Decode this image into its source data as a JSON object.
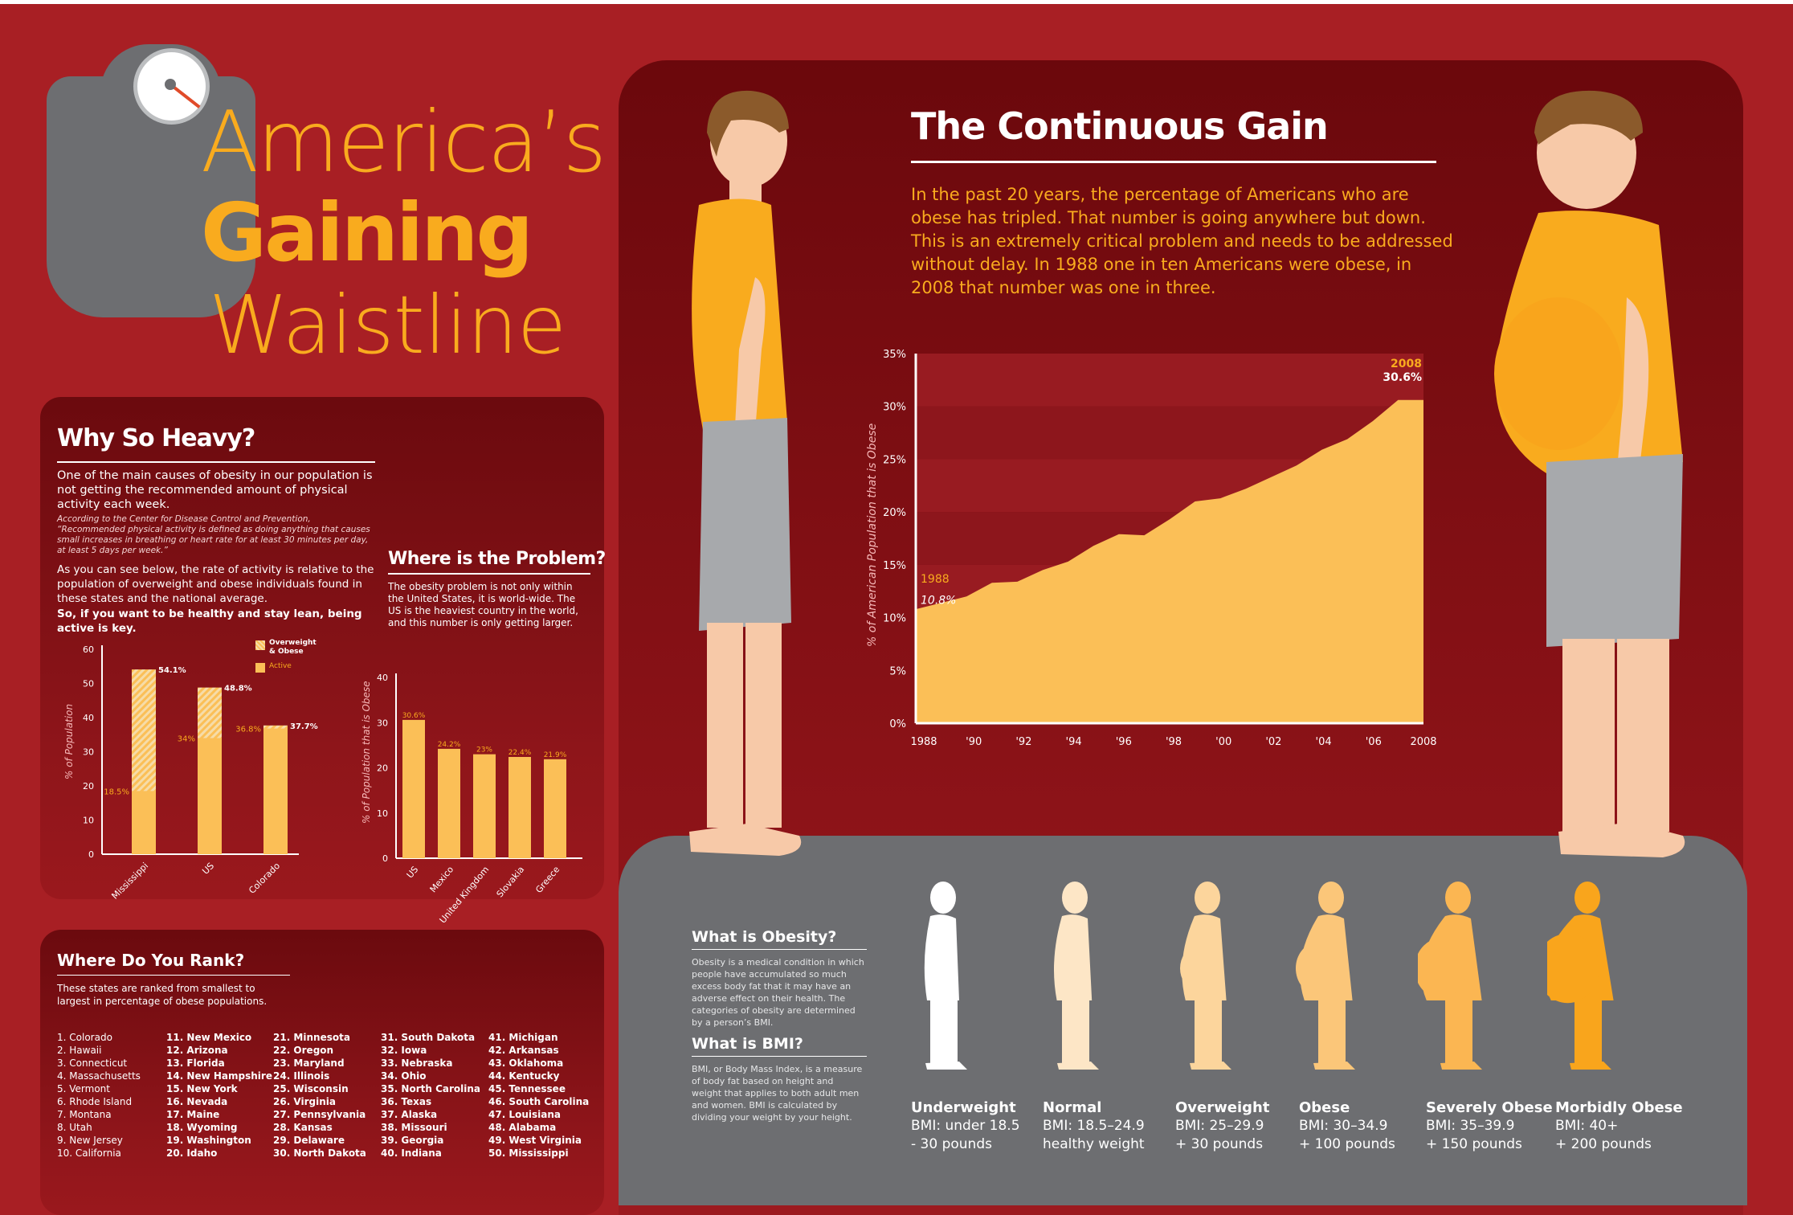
{
  "title": {
    "line1": "America’s",
    "line2": "Gaining",
    "line3": "Waistline"
  },
  "why": {
    "heading": "Why So Heavy?",
    "intro": "One of the main causes of obesity in our population is not getting the recommended amount of physical activity each week.",
    "note": "According to the Center for Disease Control and Prevention, “Recommended physical activity is defined as doing anything that causes small increases in breathing or heart rate for at least 30 minutes per day, at least 5 days per week.”",
    "para": "As you can see below, the rate of activity is relative to the population of overweight and obese individuals found in these states and the national average.",
    "para_bold": "So, if you want to be healthy and stay lean, being active is key."
  },
  "problem": {
    "heading": "Where is the Problem?",
    "text": "The obesity problem is not only within the United States, it is world-wide. The US is  the heaviest country in the world, and this number is only getting larger."
  },
  "rank": {
    "heading": "Where Do You Rank?",
    "text": "These states are ranked from smallest to largest in percentage of obese populations.",
    "columns": [
      [
        "1. Colorado",
        "2. Hawaii",
        "3. Connecticut",
        "4. Massachusetts",
        "5. Vermont",
        "6. Rhode Island",
        "7. Montana",
        "8. Utah",
        "9. New Jersey",
        "10. California"
      ],
      [
        "11. New Mexico",
        "12. Arizona",
        "13. Florida",
        "14. New Hampshire",
        "15. New York",
        "16. Nevada",
        "17. Maine",
        "18. Wyoming",
        "19. Washington",
        "20. Idaho"
      ],
      [
        "21. Minnesota",
        "22. Oregon",
        "23. Maryland",
        "24. Illinois",
        "25. Wisconsin",
        "26. Virginia",
        "27. Pennsylvania",
        "28. Kansas",
        "29. Delaware",
        "30. North Dakota"
      ],
      [
        "31. South Dakota",
        "32. Iowa",
        "33. Nebraska",
        "34. Ohio",
        "35. North Carolina",
        "36. Texas",
        "37. Alaska",
        "38. Missouri",
        "39. Georgia",
        "40. Indiana"
      ],
      [
        "41. Michigan",
        "42. Arkansas",
        "43. Oklahoma",
        "44. Kentucky",
        "45. Tennessee",
        "46. South Carolina",
        "47. Louisiana",
        "48. Alabama",
        "49. West Virginia",
        "50. Mississippi"
      ]
    ]
  },
  "main": {
    "heading": "The Continuous Gain",
    "text": "In the past 20 years, the percentage of Americans who are obese has tripled. That number is going anywhere but down. This is an extremely critical problem and needs to be addressed without delay. In 1988 one in ten Americans were obese, in 2008 that number was one in three."
  },
  "obesity": {
    "heading": "What is Obesity?",
    "text": "Obesity is a medical condition in which people have accumulated so much excess body fat that it may have an adverse effect on their health. The categories of obesity are determined by a person’s BMI.",
    "bmi_heading": "What is BMI?",
    "bmi_text": "BMI, or Body Mass Index, is a measure of body fat based on height and weight that applies to both adult men and women. BMI is calculated by dividing your weight by your height."
  },
  "bmi_categories": [
    {
      "name": "Underweight",
      "range": "BMI: under 18.5",
      "note": "- 30 pounds",
      "color": "#ffffff"
    },
    {
      "name": "Normal",
      "range": "BMI: 18.5–24.9",
      "note": "healthy weight",
      "color": "#fde6c6"
    },
    {
      "name": "Overweight",
      "range": "BMI: 25–29.9",
      "note": "+ 30 pounds",
      "color": "#fcd59c"
    },
    {
      "name": "Obese",
      "range": "BMI: 30–34.9",
      "note": "+ 100 pounds",
      "color": "#fbc679"
    },
    {
      "name": "Severely Obese",
      "range": "BMI: 35–39.9",
      "note": "+ 150 pounds",
      "color": "#fbb652"
    },
    {
      "name": "Morbidly Obese",
      "range": "BMI: 40+",
      "note": "+ 200 pounds",
      "color": "#f9a51c"
    }
  ],
  "colors": {
    "background": "#a81f24",
    "accent": "#f9ab1e",
    "bar": "#fbbf57",
    "panel": "#7a0d12",
    "stage": "#6d6e71"
  },
  "chart_data": [
    {
      "type": "bar",
      "ylabel": "% of Population",
      "ylim": [
        0,
        60
      ],
      "yticks": [
        "0",
        "10",
        "20",
        "30",
        "40",
        "50",
        "60"
      ],
      "categories": [
        "Mississippi",
        "US",
        "Colorado"
      ],
      "series": [
        {
          "name": "Overweight & Obese",
          "values": [
            54.1,
            48.8,
            37.7
          ],
          "labels": [
            "54.1%",
            "48.8%",
            "37.7%"
          ]
        },
        {
          "name": "Active",
          "values": [
            18.5,
            34,
            36.8
          ],
          "labels": [
            "18.5%",
            "34%",
            "36.8%"
          ]
        }
      ],
      "legend": "top-right"
    },
    {
      "type": "bar",
      "ylabel": "% of Population that is Obese",
      "ylim": [
        0,
        40
      ],
      "yticks": [
        "0",
        "10",
        "20",
        "30",
        "40"
      ],
      "categories": [
        "US",
        "Mexico",
        "United Kingdom",
        "Slovakia",
        "Greece"
      ],
      "values": [
        30.6,
        24.2,
        23,
        22.4,
        21.9
      ],
      "labels": [
        "30.6%",
        "24.2%",
        "23%",
        "22.4%",
        "21.9%"
      ]
    },
    {
      "type": "area",
      "ylabel": "% of American Population that is Obese",
      "ylim": [
        0,
        35
      ],
      "yticks": [
        "0%",
        "5%",
        "10%",
        "15%",
        "20%",
        "25%",
        "30%",
        "35%"
      ],
      "xticks": [
        "1988",
        "'90",
        "'92",
        "'94",
        "'96",
        "'98",
        "'00",
        "'02",
        "'04",
        "'06",
        "2008"
      ],
      "x": [
        1988,
        1989,
        1990,
        1991,
        1992,
        1993,
        1994,
        1995,
        1996,
        1997,
        1998,
        1999,
        2000,
        2001,
        2002,
        2003,
        2004,
        2005,
        2006,
        2007,
        2008
      ],
      "values": [
        10.8,
        11.4,
        12.0,
        13.3,
        13.4,
        14.5,
        15.3,
        16.8,
        17.9,
        17.8,
        19.3,
        21.0,
        21.3,
        22.2,
        23.3,
        24.4,
        25.9,
        26.9,
        28.6,
        30.6,
        30.6
      ],
      "annotations": [
        {
          "year": "1988",
          "value": "10.8%"
        },
        {
          "year": "2008",
          "value": "30.6%"
        }
      ]
    }
  ]
}
